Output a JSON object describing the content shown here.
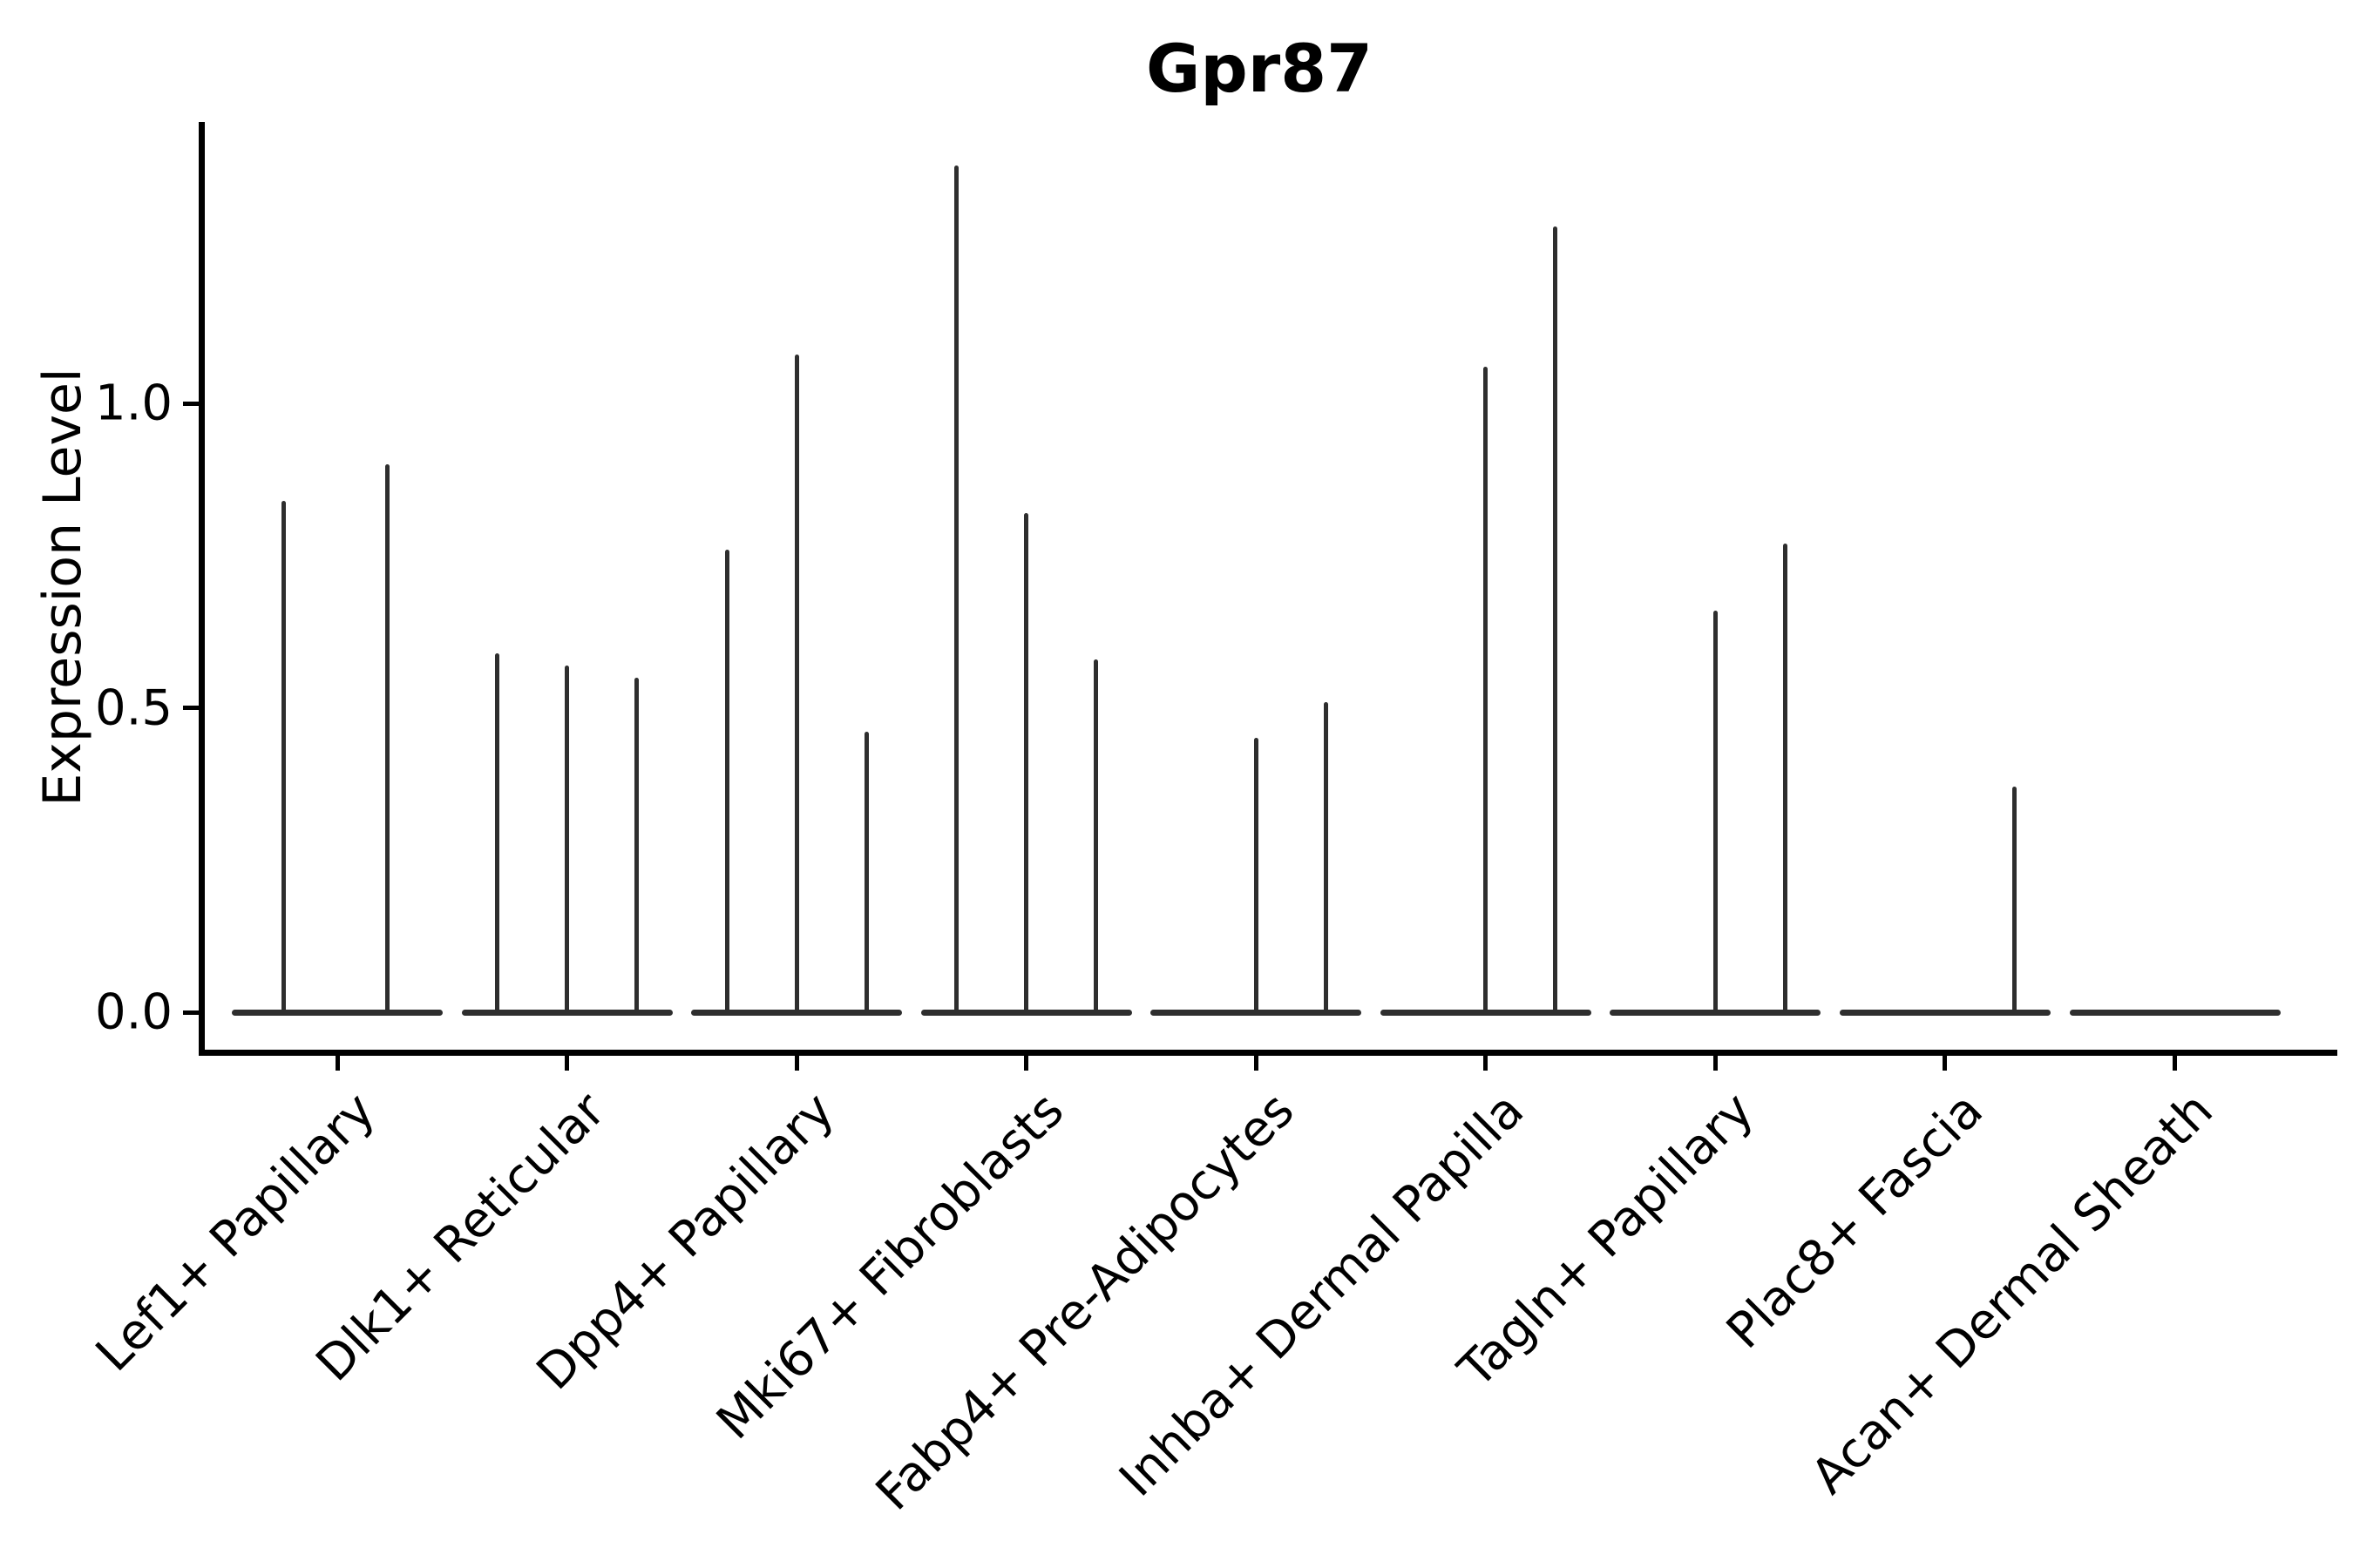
{
  "chart_data": {
    "type": "violin",
    "title": "Gpr87",
    "ylabel": "Expression Level",
    "xlabel": "",
    "grid": false,
    "legend": "none",
    "ylim": [
      -0.07,
      1.47
    ],
    "yticks": [
      {
        "label": "0.0",
        "value": 0.0
      },
      {
        "label": "0.5",
        "value": 0.5
      },
      {
        "label": "1.0",
        "value": 1.0
      }
    ],
    "categories": [
      "Lef1+ Papillary",
      "Dlk1+ Reticular",
      "Dpp4+ Papillary",
      "Mki67+ Fibroblasts",
      "Fabp4+ Pre-Adipocytes",
      "Inhba+ Dermal Papilla",
      "Tagln+ Papillary",
      "Plac8+ Fascia",
      "Acan+ Dermal Sheath"
    ],
    "violins": [
      {
        "category": "Lef1+ Papillary",
        "spikes": [
          {
            "offset": -62,
            "max": 0.84
          },
          {
            "offset": 57,
            "max": 0.9
          }
        ]
      },
      {
        "category": "Dlk1+ Reticular",
        "spikes": [
          {
            "offset": -80,
            "max": 0.59
          },
          {
            "offset": 0,
            "max": 0.57
          },
          {
            "offset": 80,
            "max": 0.55
          }
        ]
      },
      {
        "category": "Dpp4+ Papillary",
        "spikes": [
          {
            "offset": -80,
            "max": 0.76
          },
          {
            "offset": 0,
            "max": 1.08
          },
          {
            "offset": 80,
            "max": 0.46
          }
        ]
      },
      {
        "category": "Mki67+ Fibroblasts",
        "spikes": [
          {
            "offset": -80,
            "max": 1.39
          },
          {
            "offset": 0,
            "max": 0.82
          },
          {
            "offset": 80,
            "max": 0.58
          }
        ]
      },
      {
        "category": "Fabp4+ Pre-Adipocytes",
        "spikes": [
          {
            "offset": 0,
            "max": 0.45
          },
          {
            "offset": 80,
            "max": 0.51
          }
        ]
      },
      {
        "category": "Inhba+ Dermal Papilla",
        "spikes": [
          {
            "offset": 0,
            "max": 1.06
          },
          {
            "offset": 80,
            "max": 1.29
          }
        ]
      },
      {
        "category": "Tagln+ Papillary",
        "spikes": [
          {
            "offset": 0,
            "max": 0.66
          },
          {
            "offset": 80,
            "max": 0.77
          }
        ]
      },
      {
        "category": "Plac8+ Fascia",
        "spikes": [
          {
            "offset": 80,
            "max": 0.37
          }
        ]
      },
      {
        "category": "Acan+ Dermal Sheath",
        "spikes": []
      }
    ],
    "colors": {
      "violin": "#2e2e2e",
      "axis": "#000000",
      "text": "#000000",
      "background": "#ffffff"
    }
  }
}
